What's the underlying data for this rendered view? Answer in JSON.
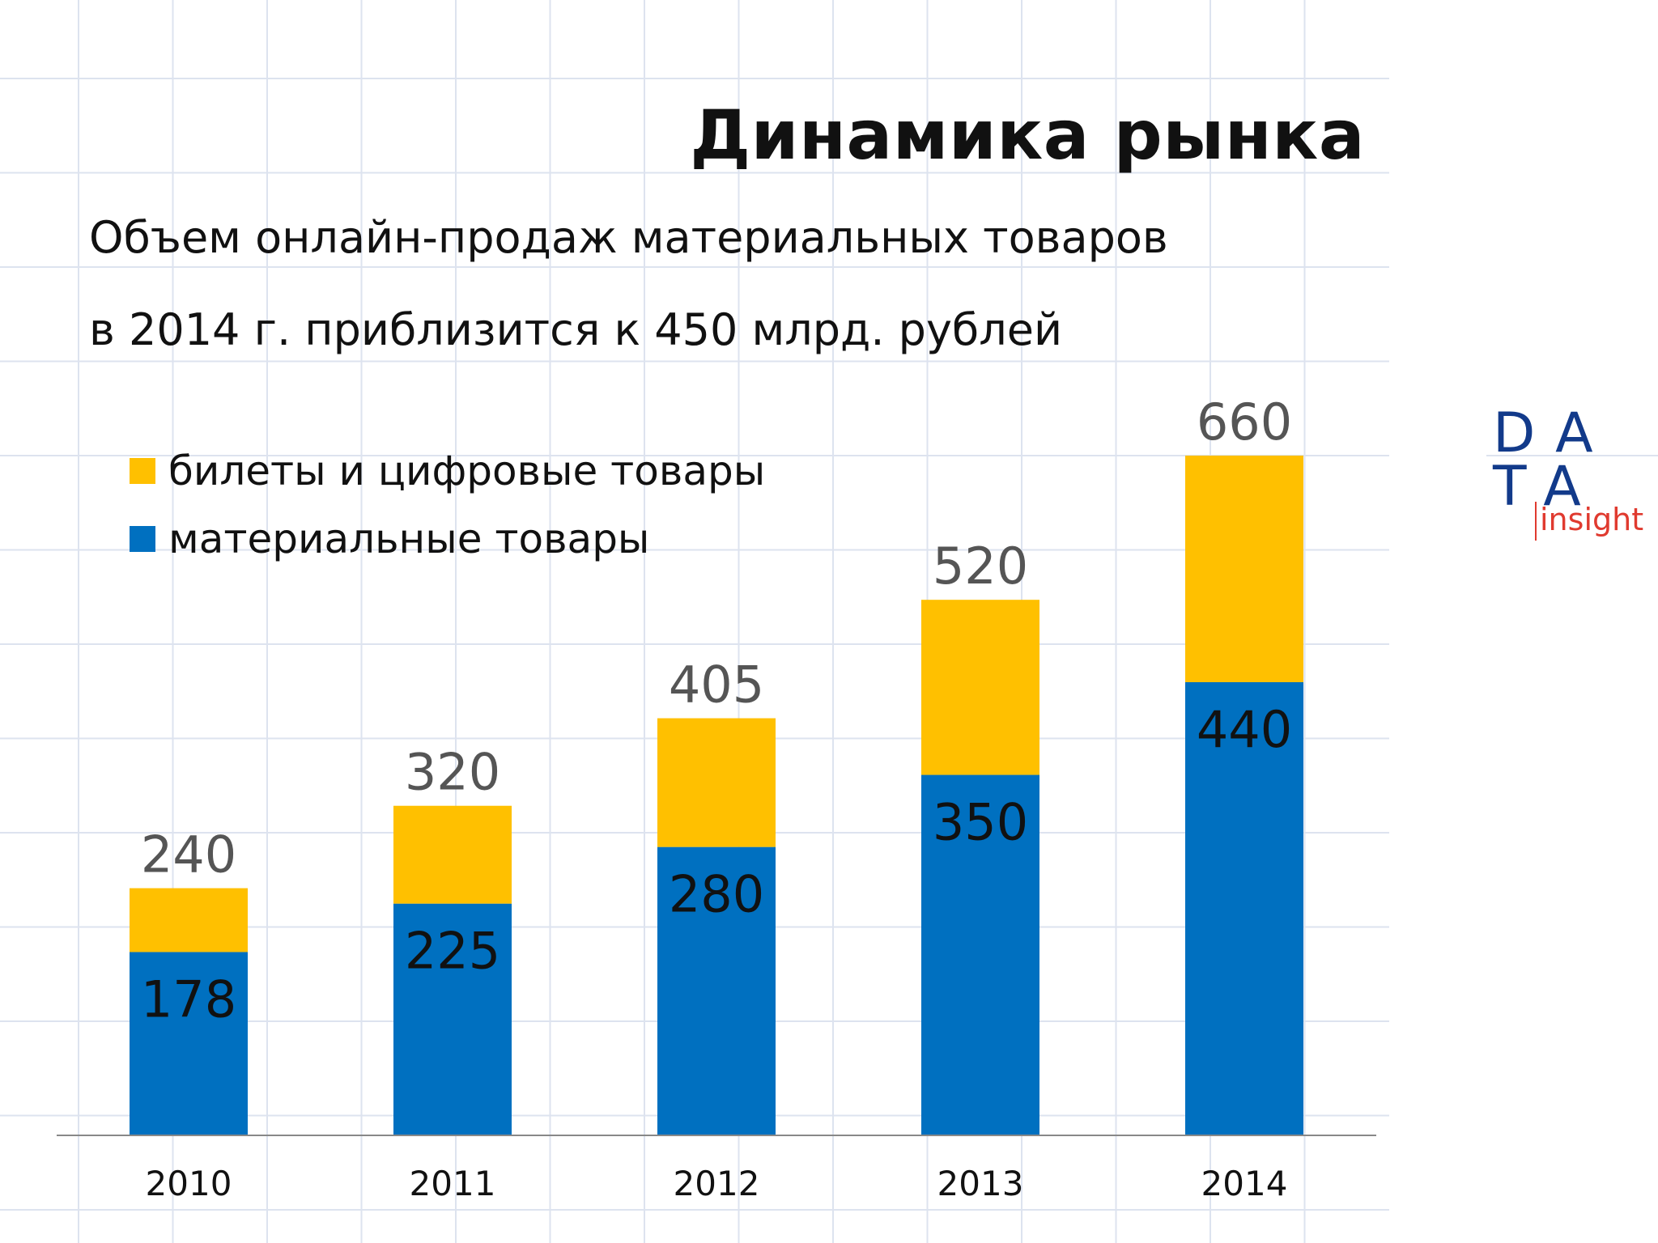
{
  "title": "Динамика рынка",
  "subtitle": {
    "line1": "Объем онлайн-продаж материальных товаров",
    "line2": "в 2014 г. приблизится к 450 млрд. рублей"
  },
  "logo": {
    "row1": "DA",
    "row2": "TA",
    "word": "insight"
  },
  "colors": {
    "blue": "#0070c0",
    "yellow": "#ffc000",
    "axis": "#888888"
  },
  "chart_data": {
    "type": "bar",
    "stacked": true,
    "categories": [
      "2010",
      "2011",
      "2012",
      "2013",
      "2014"
    ],
    "series": [
      {
        "name": "материальные товары",
        "color": "#0070c0",
        "values": [
          178,
          225,
          280,
          350,
          440
        ]
      },
      {
        "name": "билеты и цифровые товары",
        "color": "#ffc000",
        "values": [
          62,
          95,
          125,
          170,
          220
        ]
      }
    ],
    "totals": [
      240,
      320,
      405,
      520,
      660
    ],
    "legend": [
      {
        "label": "билеты и цифровые товары",
        "color": "#ffc000"
      },
      {
        "label": "материальные товары",
        "color": "#0070c0"
      }
    ],
    "legend_position": "top-left",
    "ylim": [
      0,
      660
    ],
    "grid": true
  }
}
